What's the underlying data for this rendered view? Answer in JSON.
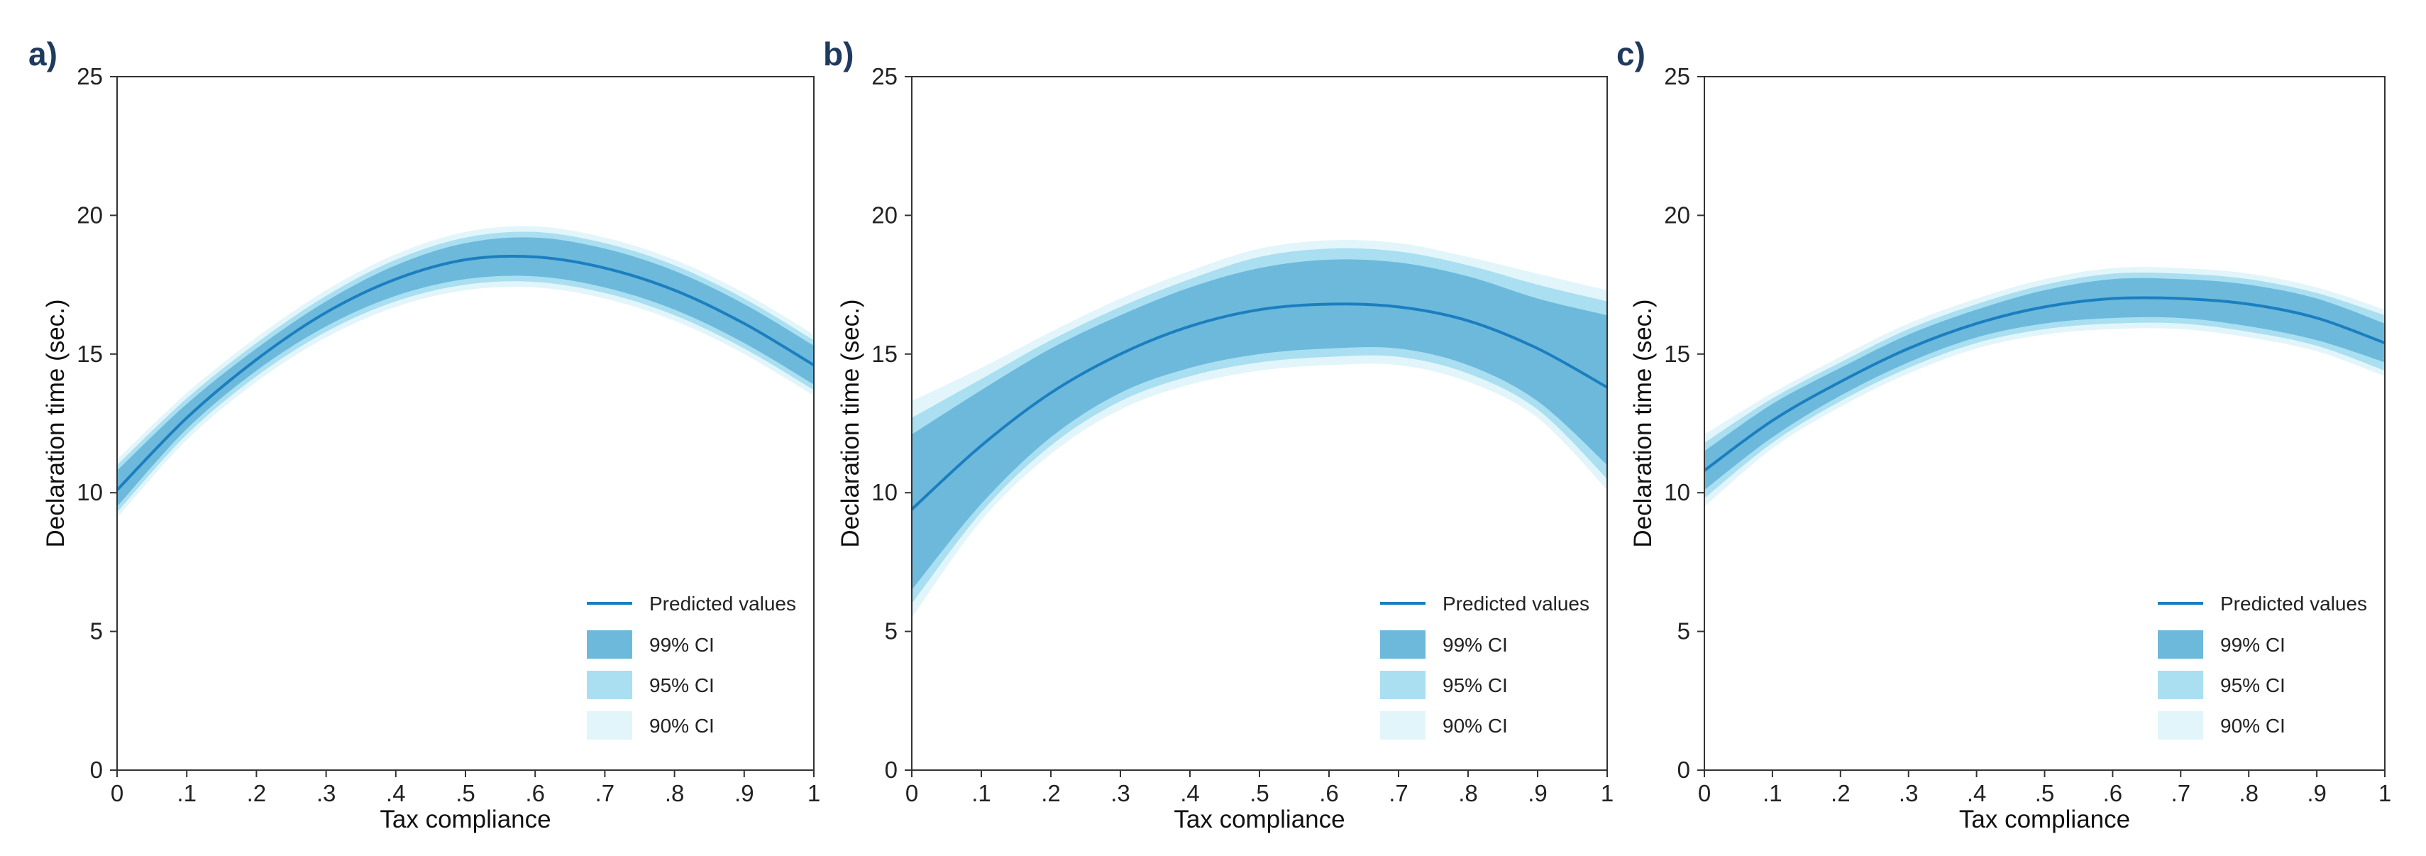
{
  "colors": {
    "line": "#1b7fbf",
    "ci99": "#6db9dc",
    "ci95": "#a9dff0",
    "ci90": "#e2f5fb",
    "axis": "#333333",
    "panel_label": "#1f3a5f"
  },
  "chart_data": [
    {
      "panel_label": "a)",
      "type": "line",
      "xlabel": "Tax compliance",
      "ylabel": "Declaration time (sec.)",
      "xlim": [
        0,
        1
      ],
      "ylim": [
        0,
        25
      ],
      "xticks": [
        0,
        0.1,
        0.2,
        0.3,
        0.4,
        0.5,
        0.6,
        0.7,
        0.8,
        0.9,
        1
      ],
      "xtick_labels": [
        "0",
        ".1",
        ".2",
        ".3",
        ".4",
        ".5",
        ".6",
        ".7",
        ".8",
        ".9",
        "1"
      ],
      "yticks": [
        0,
        5,
        10,
        15,
        20,
        25
      ],
      "ytick_labels": [
        "0",
        "5",
        "10",
        "15",
        "20",
        "25"
      ],
      "legend": [
        "Predicted values",
        "99% CI",
        "95% CI",
        "90% CI"
      ],
      "x": [
        0,
        0.1,
        0.2,
        0.3,
        0.4,
        0.5,
        0.6,
        0.7,
        0.8,
        0.9,
        1
      ],
      "predicted": [
        10.1,
        12.7,
        14.8,
        16.5,
        17.7,
        18.4,
        18.5,
        18.1,
        17.3,
        16.1,
        14.6
      ],
      "ci99": {
        "lower": [
          9.5,
          12.3,
          14.4,
          16.0,
          17.1,
          17.7,
          17.8,
          17.4,
          16.6,
          15.4,
          13.9
        ],
        "upper": [
          10.8,
          13.2,
          15.2,
          16.9,
          18.2,
          19.0,
          19.2,
          18.8,
          18.0,
          16.8,
          15.3
        ]
      },
      "ci95": {
        "lower": [
          9.3,
          12.1,
          14.2,
          15.8,
          16.9,
          17.5,
          17.6,
          17.2,
          16.4,
          15.2,
          13.7
        ],
        "upper": [
          11.0,
          13.4,
          15.4,
          17.1,
          18.4,
          19.2,
          19.4,
          19.0,
          18.2,
          17.0,
          15.5
        ]
      },
      "ci90": {
        "lower": [
          9.1,
          11.9,
          14.0,
          15.6,
          16.7,
          17.3,
          17.4,
          17.0,
          16.2,
          15.0,
          13.5
        ],
        "upper": [
          11.2,
          13.6,
          15.6,
          17.3,
          18.6,
          19.4,
          19.6,
          19.2,
          18.4,
          17.2,
          15.7
        ]
      }
    },
    {
      "panel_label": "b)",
      "type": "line",
      "xlabel": "Tax compliance",
      "ylabel": "Declaration time (sec.)",
      "xlim": [
        0,
        1
      ],
      "ylim": [
        0,
        25
      ],
      "xticks": [
        0,
        0.1,
        0.2,
        0.3,
        0.4,
        0.5,
        0.6,
        0.7,
        0.8,
        0.9,
        1
      ],
      "xtick_labels": [
        "0",
        ".1",
        ".2",
        ".3",
        ".4",
        ".5",
        ".6",
        ".7",
        ".8",
        ".9",
        "1"
      ],
      "yticks": [
        0,
        5,
        10,
        15,
        20,
        25
      ],
      "ytick_labels": [
        "0",
        "5",
        "10",
        "15",
        "20",
        "25"
      ],
      "legend": [
        "Predicted values",
        "99% CI",
        "95% CI",
        "90% CI"
      ],
      "x": [
        0,
        0.1,
        0.2,
        0.3,
        0.4,
        0.5,
        0.6,
        0.7,
        0.8,
        0.9,
        1
      ],
      "predicted": [
        9.4,
        11.7,
        13.6,
        15.0,
        16.0,
        16.6,
        16.8,
        16.7,
        16.2,
        15.2,
        13.8
      ],
      "ci99": {
        "lower": [
          6.5,
          9.6,
          12.0,
          13.6,
          14.5,
          15.0,
          15.2,
          15.2,
          14.6,
          13.3,
          11.0
        ],
        "upper": [
          12.1,
          13.7,
          15.2,
          16.4,
          17.4,
          18.1,
          18.4,
          18.3,
          17.8,
          17.0,
          16.4
        ]
      },
      "ci95": {
        "lower": [
          6.0,
          9.3,
          11.7,
          13.3,
          14.2,
          14.7,
          14.9,
          14.9,
          14.3,
          13.0,
          10.5
        ],
        "upper": [
          12.7,
          14.1,
          15.5,
          16.7,
          17.7,
          18.5,
          18.8,
          18.7,
          18.2,
          17.5,
          16.9
        ]
      },
      "ci90": {
        "lower": [
          5.5,
          9.0,
          11.4,
          13.0,
          13.9,
          14.4,
          14.6,
          14.6,
          14.0,
          12.7,
          10.1
        ],
        "upper": [
          13.3,
          14.5,
          15.8,
          17.0,
          18.0,
          18.8,
          19.1,
          19.0,
          18.5,
          17.9,
          17.3
        ]
      }
    },
    {
      "panel_label": "c)",
      "type": "line",
      "xlabel": "Tax compliance",
      "ylabel": "Declaration time (sec.)",
      "xlim": [
        0,
        1
      ],
      "ylim": [
        0,
        25
      ],
      "xticks": [
        0,
        0.1,
        0.2,
        0.3,
        0.4,
        0.5,
        0.6,
        0.7,
        0.8,
        0.9,
        1
      ],
      "xtick_labels": [
        "0",
        ".1",
        ".2",
        ".3",
        ".4",
        ".5",
        ".6",
        ".7",
        ".8",
        ".9",
        "1"
      ],
      "yticks": [
        0,
        5,
        10,
        15,
        20,
        25
      ],
      "ytick_labels": [
        "0",
        "5",
        "10",
        "15",
        "20",
        "25"
      ],
      "legend": [
        "Predicted values",
        "99% CI",
        "95% CI",
        "90% CI"
      ],
      "x": [
        0,
        0.1,
        0.2,
        0.3,
        0.4,
        0.5,
        0.6,
        0.7,
        0.8,
        0.9,
        1
      ],
      "predicted": [
        10.8,
        12.6,
        14.0,
        15.2,
        16.1,
        16.7,
        17.0,
        17.0,
        16.8,
        16.3,
        15.4
      ],
      "ci99": {
        "lower": [
          10.1,
          12.0,
          13.5,
          14.7,
          15.6,
          16.1,
          16.3,
          16.3,
          16.0,
          15.5,
          14.7
        ],
        "upper": [
          11.5,
          13.2,
          14.5,
          15.7,
          16.6,
          17.3,
          17.7,
          17.7,
          17.5,
          17.0,
          16.1
        ]
      },
      "ci95": {
        "lower": [
          9.8,
          11.8,
          13.3,
          14.5,
          15.4,
          15.9,
          16.1,
          16.1,
          15.8,
          15.3,
          14.4
        ],
        "upper": [
          11.8,
          13.4,
          14.7,
          15.9,
          16.8,
          17.5,
          17.9,
          17.9,
          17.7,
          17.2,
          16.4
        ]
      },
      "ci90": {
        "lower": [
          9.5,
          11.6,
          13.1,
          14.3,
          15.2,
          15.7,
          15.9,
          15.9,
          15.6,
          15.1,
          14.2
        ],
        "upper": [
          12.1,
          13.6,
          14.9,
          16.1,
          17.0,
          17.7,
          18.1,
          18.1,
          17.9,
          17.4,
          16.6
        ]
      }
    }
  ]
}
